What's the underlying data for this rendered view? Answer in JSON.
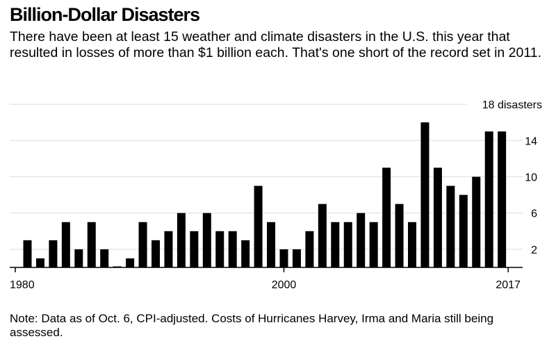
{
  "title": "Billion-Dollar Disasters",
  "subtitle": "There have been at least 15 weather and climate disasters in the U.S. this year that resulted in losses of more than $1 billion each. That's one short of the record set in 2011.",
  "note": "Note: Data as of Oct. 6, CPI-adjusted. Costs of Hurricanes Harvey, Irma and Maria still being assessed.",
  "colors": {
    "bar": "#000000",
    "grid": "#dcdcdc",
    "axis": "#000000",
    "text": "#000000"
  },
  "chart_data": {
    "type": "bar",
    "title": "Billion-Dollar Disasters",
    "xlabel": "",
    "ylabel": "disasters",
    "ylim": [
      0,
      18
    ],
    "grid": true,
    "y_ticks": [
      {
        "value": 2,
        "label": "2"
      },
      {
        "value": 6,
        "label": "6"
      },
      {
        "value": 10,
        "label": "10"
      },
      {
        "value": 14,
        "label": "14"
      },
      {
        "value": 18,
        "label": "18 disasters"
      }
    ],
    "x_ticks": [
      {
        "value": 1980,
        "label": "1980"
      },
      {
        "value": 2000,
        "label": "2000"
      },
      {
        "value": 2017,
        "label": "2017"
      }
    ],
    "categories": [
      1980,
      1981,
      1982,
      1983,
      1984,
      1985,
      1986,
      1987,
      1988,
      1989,
      1990,
      1991,
      1992,
      1993,
      1994,
      1995,
      1996,
      1997,
      1998,
      1999,
      2000,
      2001,
      2002,
      2003,
      2004,
      2005,
      2006,
      2007,
      2008,
      2009,
      2010,
      2011,
      2012,
      2013,
      2014,
      2015,
      2016,
      2017
    ],
    "values": [
      3,
      1,
      3,
      5,
      2,
      5,
      2,
      0,
      1,
      5,
      3,
      4,
      6,
      4,
      6,
      4,
      4,
      3,
      9,
      5,
      2,
      2,
      4,
      7,
      5,
      5,
      6,
      5,
      11,
      7,
      5,
      16,
      11,
      9,
      8,
      10,
      15,
      15
    ]
  }
}
